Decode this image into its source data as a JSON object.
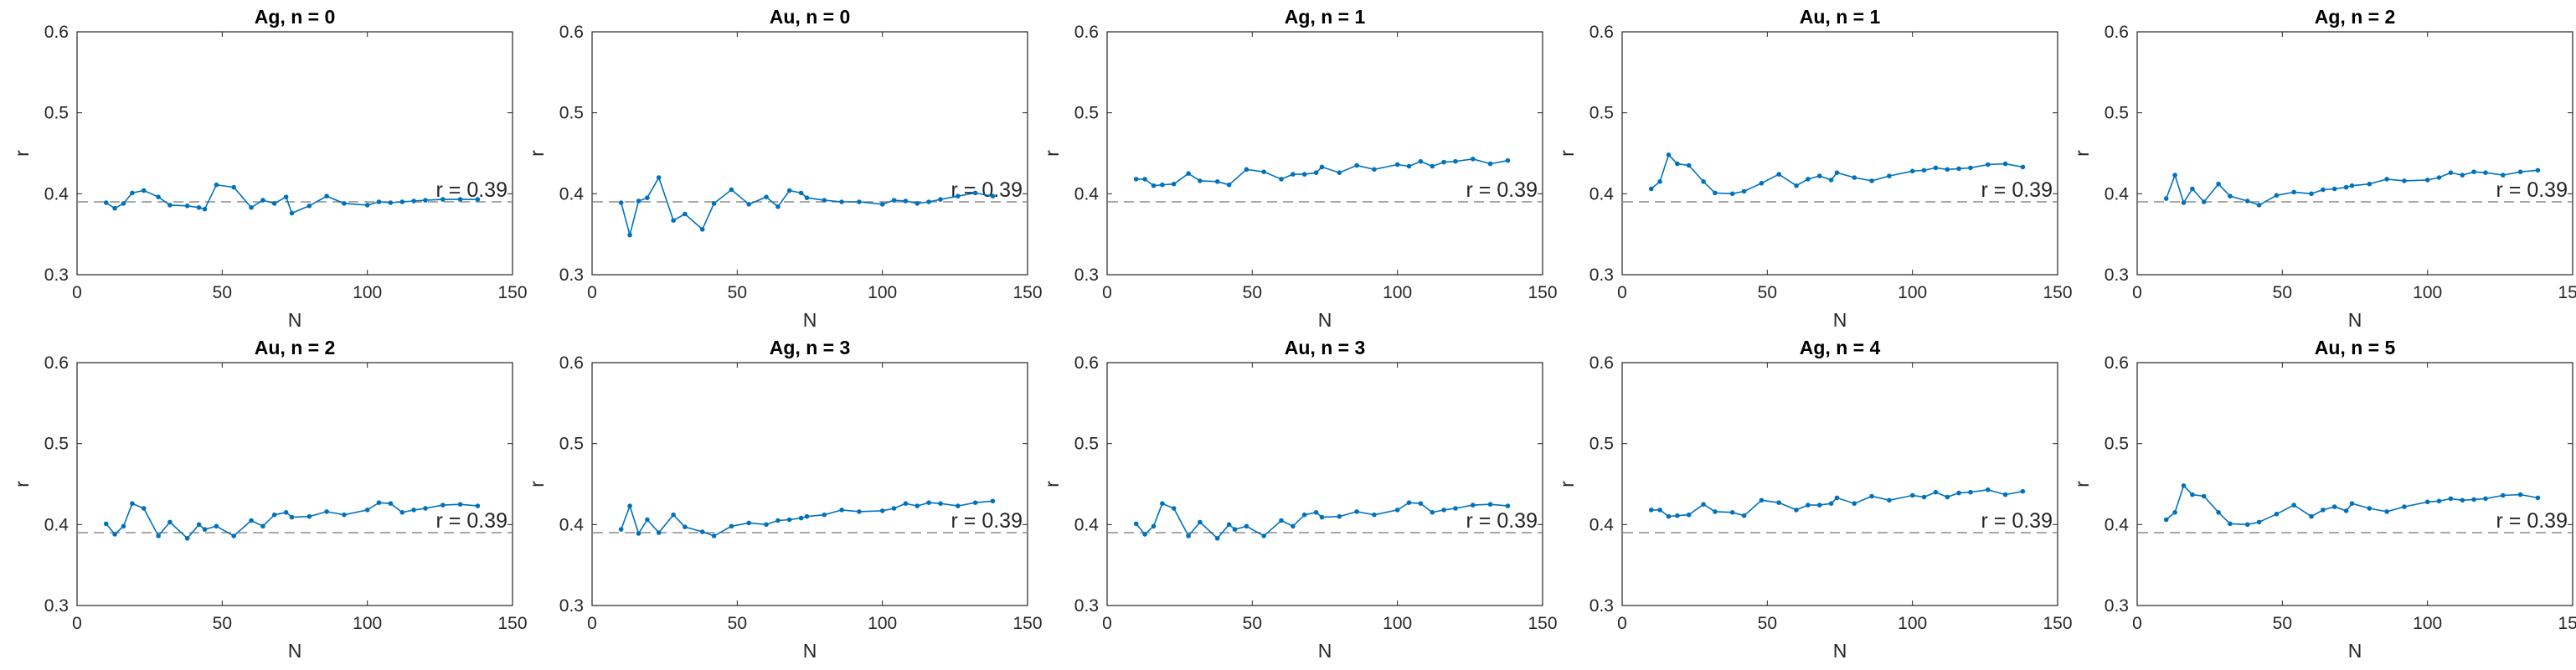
{
  "style": {
    "series_color": "#0072BD",
    "reference_color": "#8c8c8c",
    "axis_color": "#262626"
  },
  "chart_data": [
    {
      "type": "line",
      "title": "Ag, n = 0",
      "xlabel": "N",
      "ylabel": "r",
      "xlim": [
        0,
        150
      ],
      "ylim": [
        0.3,
        0.6
      ],
      "xticks": [
        "0",
        "50",
        "100",
        "150"
      ],
      "yticks": [
        "0.3",
        "0.4",
        "0.5",
        "0.6"
      ],
      "reference": {
        "y": 0.39,
        "label": "r = 0.39",
        "style": "dashed"
      },
      "x": [
        10,
        13,
        16,
        19,
        23,
        28,
        32,
        38,
        42,
        44,
        48,
        54,
        60,
        64,
        68,
        72,
        74,
        80,
        86,
        92,
        100,
        104,
        108,
        112,
        116,
        120,
        126,
        132,
        138
      ],
      "y": [
        0.389,
        0.382,
        0.388,
        0.401,
        0.404,
        0.396,
        0.386,
        0.385,
        0.383,
        0.381,
        0.411,
        0.408,
        0.383,
        0.392,
        0.388,
        0.396,
        0.376,
        0.385,
        0.397,
        0.388,
        0.386,
        0.39,
        0.389,
        0.39,
        0.391,
        0.392,
        0.393,
        0.393,
        0.393
      ]
    },
    {
      "type": "line",
      "title": "Au, n = 0",
      "xlabel": "N",
      "ylabel": "r",
      "xlim": [
        0,
        150
      ],
      "ylim": [
        0.3,
        0.6
      ],
      "xticks": [
        "0",
        "50",
        "100",
        "150"
      ],
      "yticks": [
        "0.3",
        "0.4",
        "0.5",
        "0.6"
      ],
      "reference": {
        "y": 0.39,
        "label": "r = 0.39",
        "style": "dashed"
      },
      "x": [
        10,
        13,
        16,
        19,
        23,
        28,
        32,
        38,
        42,
        48,
        54,
        60,
        64,
        68,
        72,
        74,
        80,
        86,
        92,
        100,
        104,
        108,
        112,
        116,
        120,
        126,
        132,
        138
      ],
      "y": [
        0.389,
        0.349,
        0.391,
        0.395,
        0.42,
        0.367,
        0.375,
        0.356,
        0.388,
        0.405,
        0.387,
        0.396,
        0.384,
        0.404,
        0.401,
        0.395,
        0.392,
        0.39,
        0.39,
        0.387,
        0.392,
        0.391,
        0.388,
        0.39,
        0.393,
        0.397,
        0.401,
        0.397
      ]
    },
    {
      "type": "line",
      "title": "Ag, n = 1",
      "xlabel": "N",
      "ylabel": "r",
      "xlim": [
        0,
        150
      ],
      "ylim": [
        0.3,
        0.6
      ],
      "xticks": [
        "0",
        "50",
        "100",
        "150"
      ],
      "yticks": [
        "0.3",
        "0.4",
        "0.5",
        "0.6"
      ],
      "reference": {
        "y": 0.39,
        "label": "r = 0.39",
        "style": "dashed"
      },
      "x": [
        10,
        13,
        16,
        19,
        23,
        28,
        32,
        38,
        42,
        48,
        54,
        60,
        64,
        68,
        72,
        74,
        80,
        86,
        92,
        100,
        104,
        108,
        112,
        116,
        120,
        126,
        132,
        138
      ],
      "y": [
        0.418,
        0.418,
        0.41,
        0.411,
        0.412,
        0.425,
        0.416,
        0.415,
        0.411,
        0.43,
        0.427,
        0.418,
        0.424,
        0.424,
        0.426,
        0.433,
        0.426,
        0.435,
        0.43,
        0.436,
        0.434,
        0.44,
        0.434,
        0.439,
        0.44,
        0.443,
        0.437,
        0.441
      ]
    },
    {
      "type": "line",
      "title": "Au, n = 1",
      "xlabel": "N",
      "ylabel": "r",
      "xlim": [
        0,
        150
      ],
      "ylim": [
        0.3,
        0.6
      ],
      "xticks": [
        "0",
        "50",
        "100",
        "150"
      ],
      "yticks": [
        "0.3",
        "0.4",
        "0.5",
        "0.6"
      ],
      "reference": {
        "y": 0.39,
        "label": "r = 0.39",
        "style": "dashed"
      },
      "x": [
        10,
        13,
        16,
        19,
        23,
        28,
        32,
        38,
        42,
        48,
        54,
        60,
        64,
        68,
        72,
        74,
        80,
        86,
        92,
        100,
        104,
        108,
        112,
        116,
        120,
        126,
        132,
        138
      ],
      "y": [
        0.406,
        0.415,
        0.448,
        0.437,
        0.435,
        0.415,
        0.401,
        0.4,
        0.403,
        0.413,
        0.424,
        0.41,
        0.418,
        0.422,
        0.417,
        0.426,
        0.42,
        0.416,
        0.422,
        0.428,
        0.429,
        0.432,
        0.43,
        0.431,
        0.432,
        0.436,
        0.437,
        0.433
      ]
    },
    {
      "type": "line",
      "title": "Ag, n = 2",
      "xlabel": "N",
      "ylabel": "r",
      "xlim": [
        0,
        150
      ],
      "ylim": [
        0.3,
        0.6
      ],
      "xticks": [
        "0",
        "50",
        "100",
        "150"
      ],
      "yticks": [
        "0.3",
        "0.4",
        "0.5",
        "0.6"
      ],
      "reference": {
        "y": 0.39,
        "label": "r = 0.39",
        "style": "dashed"
      },
      "x": [
        10,
        13,
        16,
        19,
        23,
        28,
        32,
        38,
        42,
        48,
        54,
        60,
        64,
        68,
        72,
        74,
        80,
        86,
        92,
        100,
        104,
        108,
        112,
        116,
        120,
        126,
        132,
        138
      ],
      "y": [
        0.394,
        0.423,
        0.389,
        0.406,
        0.39,
        0.412,
        0.397,
        0.391,
        0.386,
        0.398,
        0.402,
        0.4,
        0.405,
        0.406,
        0.408,
        0.41,
        0.412,
        0.418,
        0.416,
        0.417,
        0.42,
        0.426,
        0.423,
        0.427,
        0.426,
        0.423,
        0.427,
        0.429
      ]
    },
    {
      "type": "line",
      "title": "Au, n = 2",
      "xlabel": "N",
      "ylabel": "r",
      "xlim": [
        0,
        150
      ],
      "ylim": [
        0.3,
        0.6
      ],
      "xticks": [
        "0",
        "50",
        "100",
        "150"
      ],
      "yticks": [
        "0.3",
        "0.4",
        "0.5",
        "0.6"
      ],
      "reference": {
        "y": 0.39,
        "label": "r = 0.39",
        "style": "dashed"
      },
      "x": [
        10,
        13,
        16,
        19,
        23,
        28,
        32,
        38,
        42,
        44,
        48,
        54,
        60,
        64,
        68,
        72,
        74,
        80,
        86,
        92,
        100,
        104,
        108,
        112,
        116,
        120,
        126,
        132,
        138
      ],
      "y": [
        0.401,
        0.388,
        0.398,
        0.426,
        0.42,
        0.386,
        0.403,
        0.383,
        0.4,
        0.394,
        0.398,
        0.386,
        0.405,
        0.398,
        0.412,
        0.415,
        0.409,
        0.41,
        0.416,
        0.412,
        0.418,
        0.427,
        0.426,
        0.415,
        0.418,
        0.42,
        0.424,
        0.425,
        0.423
      ]
    },
    {
      "type": "line",
      "title": "Ag, n = 3",
      "xlabel": "N",
      "ylabel": "r",
      "xlim": [
        0,
        150
      ],
      "ylim": [
        0.3,
        0.6
      ],
      "xticks": [
        "0",
        "50",
        "100",
        "150"
      ],
      "yticks": [
        "0.3",
        "0.4",
        "0.5",
        "0.6"
      ],
      "reference": {
        "y": 0.39,
        "label": "r = 0.39",
        "style": "dashed"
      },
      "x": [
        10,
        13,
        16,
        19,
        23,
        28,
        32,
        38,
        42,
        48,
        54,
        60,
        64,
        68,
        72,
        74,
        80,
        86,
        92,
        100,
        104,
        108,
        112,
        116,
        120,
        126,
        132,
        138
      ],
      "y": [
        0.394,
        0.423,
        0.389,
        0.406,
        0.39,
        0.412,
        0.397,
        0.391,
        0.386,
        0.398,
        0.402,
        0.4,
        0.405,
        0.406,
        0.408,
        0.41,
        0.412,
        0.418,
        0.416,
        0.417,
        0.42,
        0.426,
        0.423,
        0.427,
        0.426,
        0.423,
        0.427,
        0.429
      ]
    },
    {
      "type": "line",
      "title": "Au, n = 3",
      "xlabel": "N",
      "ylabel": "r",
      "xlim": [
        0,
        150
      ],
      "ylim": [
        0.3,
        0.6
      ],
      "xticks": [
        "0",
        "50",
        "100",
        "150"
      ],
      "yticks": [
        "0.3",
        "0.4",
        "0.5",
        "0.6"
      ],
      "reference": {
        "y": 0.39,
        "label": "r = 0.39",
        "style": "dashed"
      },
      "x": [
        10,
        13,
        16,
        19,
        23,
        28,
        32,
        38,
        42,
        44,
        48,
        54,
        60,
        64,
        68,
        72,
        74,
        80,
        86,
        92,
        100,
        104,
        108,
        112,
        116,
        120,
        126,
        132,
        138
      ],
      "y": [
        0.401,
        0.388,
        0.398,
        0.426,
        0.42,
        0.386,
        0.403,
        0.383,
        0.4,
        0.394,
        0.398,
        0.386,
        0.405,
        0.398,
        0.412,
        0.415,
        0.409,
        0.41,
        0.416,
        0.412,
        0.418,
        0.427,
        0.426,
        0.415,
        0.418,
        0.42,
        0.424,
        0.425,
        0.423
      ]
    },
    {
      "type": "line",
      "title": "Ag, n = 4",
      "xlabel": "N",
      "ylabel": "r",
      "xlim": [
        0,
        150
      ],
      "ylim": [
        0.3,
        0.6
      ],
      "xticks": [
        "0",
        "50",
        "100",
        "150"
      ],
      "yticks": [
        "0.3",
        "0.4",
        "0.5",
        "0.6"
      ],
      "reference": {
        "y": 0.39,
        "label": "r = 0.39",
        "style": "dashed"
      },
      "x": [
        10,
        13,
        16,
        19,
        23,
        28,
        32,
        38,
        42,
        48,
        54,
        60,
        64,
        68,
        72,
        74,
        80,
        86,
        92,
        100,
        104,
        108,
        112,
        116,
        120,
        126,
        132,
        138
      ],
      "y": [
        0.418,
        0.418,
        0.41,
        0.411,
        0.412,
        0.425,
        0.416,
        0.415,
        0.411,
        0.43,
        0.427,
        0.418,
        0.424,
        0.424,
        0.426,
        0.433,
        0.426,
        0.435,
        0.43,
        0.436,
        0.434,
        0.44,
        0.434,
        0.439,
        0.44,
        0.443,
        0.437,
        0.441
      ]
    },
    {
      "type": "line",
      "title": "Au, n = 5",
      "xlabel": "N",
      "ylabel": "r",
      "xlim": [
        0,
        150
      ],
      "ylim": [
        0.3,
        0.6
      ],
      "xticks": [
        "0",
        "50",
        "100",
        "150"
      ],
      "yticks": [
        "0.3",
        "0.4",
        "0.5",
        "0.6"
      ],
      "reference": {
        "y": 0.39,
        "label": "r = 0.39",
        "style": "dashed"
      },
      "x": [
        10,
        13,
        16,
        19,
        23,
        28,
        32,
        38,
        42,
        48,
        54,
        60,
        64,
        68,
        72,
        74,
        80,
        86,
        92,
        100,
        104,
        108,
        112,
        116,
        120,
        126,
        132,
        138
      ],
      "y": [
        0.406,
        0.415,
        0.448,
        0.437,
        0.435,
        0.415,
        0.401,
        0.4,
        0.403,
        0.413,
        0.424,
        0.41,
        0.418,
        0.422,
        0.417,
        0.426,
        0.42,
        0.416,
        0.422,
        0.428,
        0.429,
        0.432,
        0.43,
        0.431,
        0.432,
        0.436,
        0.437,
        0.433
      ]
    }
  ]
}
